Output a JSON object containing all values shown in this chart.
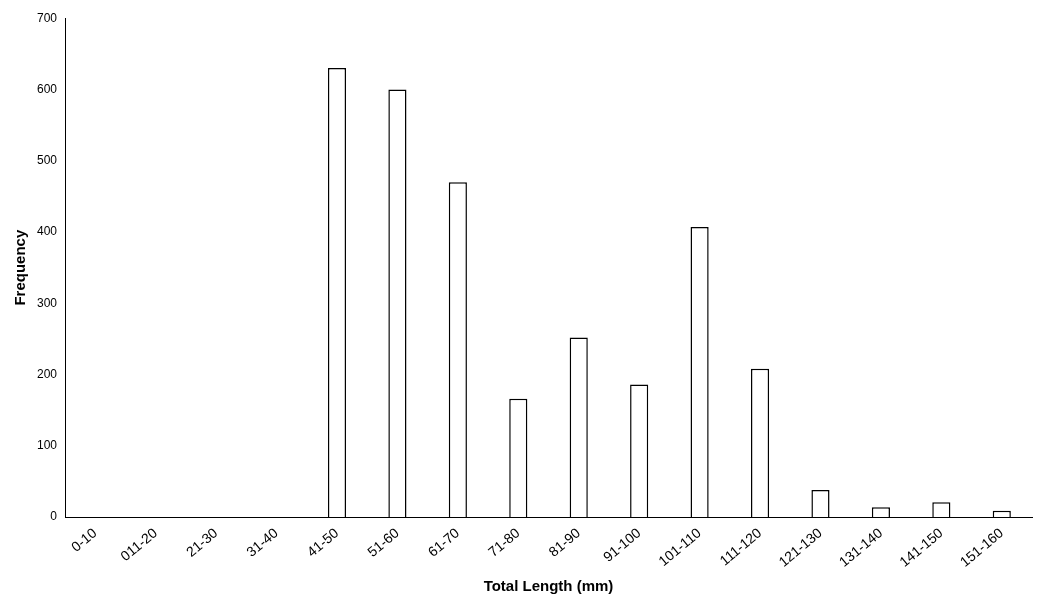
{
  "chart_data": {
    "type": "bar",
    "xlabel": "Total Length (mm)",
    "ylabel": "Frequency",
    "categories": [
      "0-10",
      "011-20",
      "21-30",
      "31-40",
      "41-50",
      "51-60",
      "61-70",
      "71-80",
      "81-90",
      "91-100",
      "101-110",
      "111-120",
      "121-130",
      "131-140",
      "141-150",
      "151-160"
    ],
    "values": [
      0,
      0,
      0,
      0,
      630,
      600,
      470,
      166,
      252,
      186,
      407,
      208,
      38,
      14,
      21,
      9
    ],
    "color": "#ffffff",
    "ylim": [
      0,
      700
    ],
    "yticks": [
      0,
      100,
      200,
      300,
      400,
      500,
      600,
      700
    ],
    "grid": false,
    "legend": false
  }
}
